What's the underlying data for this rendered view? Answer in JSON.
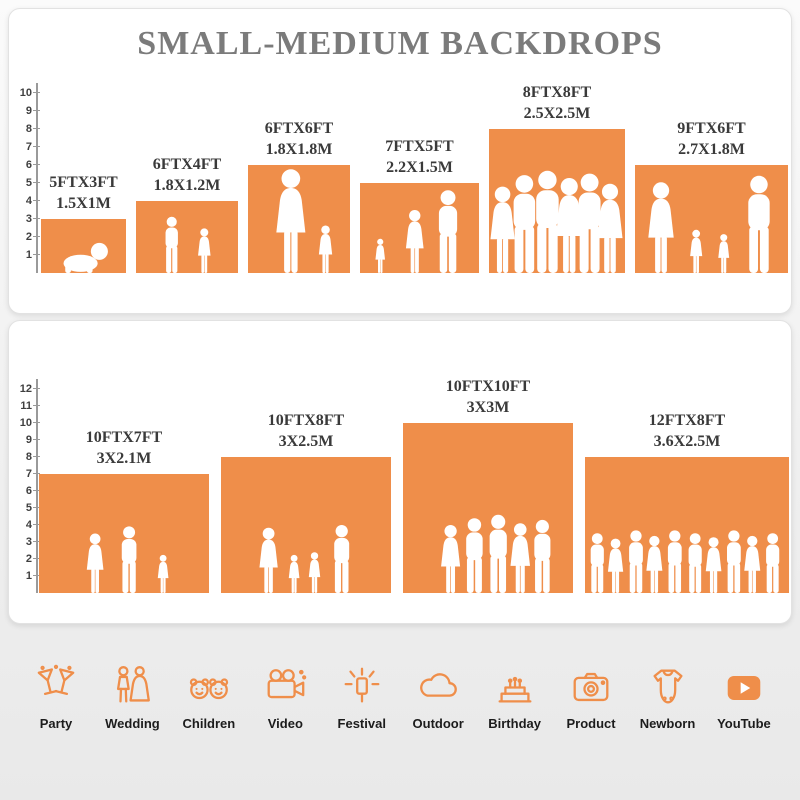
{
  "title": "SMALL-MEDIUM BACKDROPS",
  "colors": {
    "accent": "#EF8E4A",
    "title_gray": "#7b7b7b",
    "label_dark": "#3a3a3a"
  },
  "chart_data": [
    {
      "type": "bar",
      "title": "SMALL-MEDIUM BACKDROPS",
      "ylim": [
        0,
        10
      ],
      "axis_ticks": [
        1,
        2,
        3,
        4,
        5,
        6,
        7,
        8,
        9,
        10
      ],
      "grid": false,
      "legend": "none",
      "bars": [
        {
          "label_ft": "5FTX3FT",
          "label_m": "1.5X1M",
          "width_ft": 5,
          "height_ft": 3,
          "figures": "baby"
        },
        {
          "label_ft": "6FTX4FT",
          "label_m": "1.8X1.2M",
          "width_ft": 6,
          "height_ft": 4,
          "figures": "two-kids"
        },
        {
          "label_ft": "6FTX6FT",
          "label_m": "1.8X1.8M",
          "width_ft": 6,
          "height_ft": 6,
          "figures": "mother-child"
        },
        {
          "label_ft": "7FTX5FT",
          "label_m": "2.2X1.5M",
          "width_ft": 7,
          "height_ft": 5,
          "figures": "family-3"
        },
        {
          "label_ft": "8FTX8FT",
          "label_m": "2.5X2.5M",
          "width_ft": 8,
          "height_ft": 8,
          "figures": "group-6"
        },
        {
          "label_ft": "9FTX6FT",
          "label_m": "2.7X1.8M",
          "width_ft": 9,
          "height_ft": 6,
          "figures": "family-4"
        }
      ]
    },
    {
      "type": "bar",
      "title": "",
      "ylim": [
        0,
        12
      ],
      "axis_ticks": [
        1,
        2,
        3,
        4,
        5,
        6,
        7,
        8,
        9,
        10,
        11,
        12
      ],
      "grid": false,
      "legend": "none",
      "bars": [
        {
          "label_ft": "10FTX7FT",
          "label_m": "3X2.1M",
          "width_ft": 10,
          "height_ft": 7,
          "figures": "family-3b"
        },
        {
          "label_ft": "10FTX8FT",
          "label_m": "3X2.5M",
          "width_ft": 10,
          "height_ft": 8,
          "figures": "family-4-hands"
        },
        {
          "label_ft": "10FTX10FT",
          "label_m": "3X3M",
          "width_ft": 10,
          "height_ft": 10,
          "figures": "group-5"
        },
        {
          "label_ft": "12FTX8FT",
          "label_m": "3.6X2.5M",
          "width_ft": 12,
          "height_ft": 8,
          "figures": "group-10"
        }
      ]
    }
  ],
  "categories": [
    {
      "icon": "party-icon",
      "label": "Party"
    },
    {
      "icon": "wedding-icon",
      "label": "Wedding"
    },
    {
      "icon": "children-icon",
      "label": "Children"
    },
    {
      "icon": "video-icon",
      "label": "Video"
    },
    {
      "icon": "festival-icon",
      "label": "Festival"
    },
    {
      "icon": "outdoor-icon",
      "label": "Outdoor"
    },
    {
      "icon": "birthday-icon",
      "label": "Birthday"
    },
    {
      "icon": "product-icon",
      "label": "Product"
    },
    {
      "icon": "newborn-icon",
      "label": "Newborn"
    },
    {
      "icon": "youtube-icon",
      "label": "YouTube"
    }
  ]
}
